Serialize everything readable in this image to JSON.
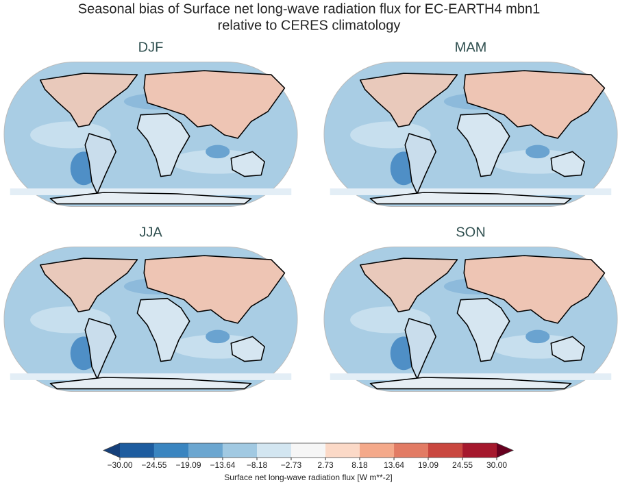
{
  "title": [
    "Seasonal bias of Surface net long-wave radiation flux for EC-EARTH4 mbn1",
    "relative to CERES climatology"
  ],
  "panels": [
    {
      "label": "DJF"
    },
    {
      "label": "MAM"
    },
    {
      "label": "JJA"
    },
    {
      "label": "SON"
    }
  ],
  "colorbar": {
    "label": "Surface net long-wave radiation flux [W m**-2]",
    "lim": [
      -30,
      30
    ],
    "ticks": [
      {
        "value": -30,
        "label": "−30.00"
      },
      {
        "value": -24.55,
        "label": "−24.55"
      },
      {
        "value": -19.09,
        "label": "−19.09"
      },
      {
        "value": -13.64,
        "label": "−13.64"
      },
      {
        "value": -8.18,
        "label": "−8.18"
      },
      {
        "value": -2.73,
        "label": "−2.73"
      },
      2.73,
      8.18,
      13.64,
      19.09,
      24.55,
      {
        "value": 30,
        "label": "30.00"
      }
    ],
    "colors": [
      "#1d5c9f",
      "#3a85c0",
      "#6ba6d0",
      "#a1c9e2",
      "#d3e6f1",
      "#f6f6f6",
      "#fbd9c7",
      "#f4a98a",
      "#e27b64",
      "#c9473f",
      "#a5182d"
    ],
    "extend_colors": [
      "#15407a",
      "#67001f"
    ]
  }
}
